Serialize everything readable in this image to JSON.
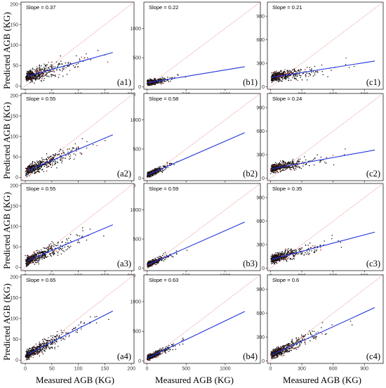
{
  "figure": {
    "ylabel": "Predicted AGB (KG)",
    "xlabel": "Measured AGB (KG)"
  },
  "chart_data": [
    {
      "type": "scatter",
      "panel_label": "(a1)",
      "annotation": "Slope = 0.37",
      "slope": 0.37,
      "intercept": 22,
      "xlim": [
        -8,
        205
      ],
      "ylim": [
        -8,
        205
      ],
      "xticks": [
        0,
        50,
        100,
        150,
        200
      ],
      "yticks": [
        0,
        50,
        100,
        150,
        200
      ],
      "n_points": 500,
      "x_scale": 25,
      "x_max": 165,
      "noise": 14,
      "fit_line": {
        "color": "#2233dd",
        "x": [
          5,
          165
        ],
        "y": [
          24,
          82
        ]
      },
      "identity_line": {
        "color": "#e88080",
        "style": "dotted"
      }
    },
    {
      "type": "scatter",
      "panel_label": "(b1)",
      "annotation": "Slope = 0.22",
      "slope": 0.22,
      "intercept": 70,
      "xlim": [
        -40,
        1450
      ],
      "ylim": [
        -40,
        1450
      ],
      "xticks": [
        0,
        500,
        1000
      ],
      "yticks": [
        0,
        500,
        1000
      ],
      "n_points": 450,
      "x_scale": 80,
      "x_max": 1250,
      "noise": 45,
      "fit_line": {
        "color": "#2233dd",
        "x": [
          10,
          1250
        ],
        "y": [
          72,
          345
        ]
      },
      "identity_line": {
        "color": "#e88080",
        "style": "dotted"
      }
    },
    {
      "type": "scatter",
      "panel_label": "(c1)",
      "annotation": "Slope = 0.21",
      "slope": 0.21,
      "intercept": 120,
      "xlim": [
        -30,
        1080
      ],
      "ylim": [
        -30,
        1080
      ],
      "xticks": [
        0,
        300,
        600,
        900
      ],
      "yticks": [
        0,
        300,
        600,
        900
      ],
      "n_points": 500,
      "x_scale": 120,
      "x_max": 1000,
      "noise": 55,
      "fit_line": {
        "color": "#2233dd",
        "x": [
          10,
          1000
        ],
        "y": [
          122,
          330
        ]
      },
      "identity_line": {
        "color": "#e88080",
        "style": "dotted"
      }
    },
    {
      "type": "scatter",
      "panel_label": "(a2)",
      "annotation": "Slope = 0.55",
      "slope": 0.55,
      "intercept": 14,
      "xlim": [
        -8,
        205
      ],
      "ylim": [
        -8,
        205
      ],
      "xticks": [
        0,
        50,
        100,
        150,
        200
      ],
      "yticks": [
        0,
        50,
        100,
        150,
        200
      ],
      "n_points": 500,
      "x_scale": 25,
      "x_max": 165,
      "noise": 12,
      "fit_line": {
        "color": "#2233dd",
        "x": [
          5,
          165
        ],
        "y": [
          17,
          104
        ]
      },
      "identity_line": {
        "color": "#e88080",
        "style": "dotted"
      }
    },
    {
      "type": "scatter",
      "panel_label": "(b2)",
      "annotation": "Slope = 0.58",
      "slope": 0.58,
      "intercept": 55,
      "xlim": [
        -40,
        1450
      ],
      "ylim": [
        -40,
        1450
      ],
      "xticks": [
        0,
        500,
        1000
      ],
      "yticks": [
        0,
        500,
        1000
      ],
      "n_points": 450,
      "x_scale": 80,
      "x_max": 1250,
      "noise": 45,
      "fit_line": {
        "color": "#2233dd",
        "x": [
          10,
          1250
        ],
        "y": [
          60,
          780
        ]
      },
      "identity_line": {
        "color": "#e88080",
        "style": "dotted"
      }
    },
    {
      "type": "scatter",
      "panel_label": "(c2)",
      "annotation": "Slope = 0.24",
      "slope": 0.24,
      "intercept": 120,
      "xlim": [
        -30,
        1080
      ],
      "ylim": [
        -30,
        1080
      ],
      "xticks": [
        0,
        300,
        600,
        900
      ],
      "yticks": [
        0,
        300,
        600,
        900
      ],
      "n_points": 500,
      "x_scale": 120,
      "x_max": 1000,
      "noise": 55,
      "fit_line": {
        "color": "#2233dd",
        "x": [
          10,
          1000
        ],
        "y": [
          122,
          360
        ]
      },
      "identity_line": {
        "color": "#e88080",
        "style": "dotted"
      }
    },
    {
      "type": "scatter",
      "panel_label": "(a3)",
      "annotation": "Slope = 0.55",
      "slope": 0.55,
      "intercept": 14,
      "xlim": [
        -8,
        205
      ],
      "ylim": [
        -8,
        205
      ],
      "xticks": [
        0,
        50,
        100,
        150,
        200
      ],
      "yticks": [
        0,
        50,
        100,
        150,
        200
      ],
      "n_points": 500,
      "x_scale": 25,
      "x_max": 165,
      "noise": 12,
      "fit_line": {
        "color": "#2233dd",
        "x": [
          5,
          165
        ],
        "y": [
          17,
          104
        ]
      },
      "identity_line": {
        "color": "#e88080",
        "style": "dotted"
      }
    },
    {
      "type": "scatter",
      "panel_label": "(b3)",
      "annotation": "Slope = 0.59",
      "slope": 0.59,
      "intercept": 55,
      "xlim": [
        -40,
        1450
      ],
      "ylim": [
        -40,
        1450
      ],
      "xticks": [
        0,
        500,
        1000
      ],
      "yticks": [
        0,
        500,
        1000
      ],
      "n_points": 450,
      "x_scale": 80,
      "x_max": 1250,
      "noise": 45,
      "fit_line": {
        "color": "#2233dd",
        "x": [
          10,
          1250
        ],
        "y": [
          60,
          790
        ]
      },
      "identity_line": {
        "color": "#e88080",
        "style": "dotted"
      }
    },
    {
      "type": "scatter",
      "panel_label": "(c3)",
      "annotation": "Slope = 0.35",
      "slope": 0.35,
      "intercept": 110,
      "xlim": [
        -30,
        1080
      ],
      "ylim": [
        -30,
        1080
      ],
      "xticks": [
        0,
        300,
        600,
        900
      ],
      "yticks": [
        0,
        300,
        600,
        900
      ],
      "n_points": 500,
      "x_scale": 120,
      "x_max": 1000,
      "noise": 55,
      "fit_line": {
        "color": "#2233dd",
        "x": [
          10,
          1000
        ],
        "y": [
          114,
          460
        ]
      },
      "identity_line": {
        "color": "#e88080",
        "style": "dotted"
      }
    },
    {
      "type": "scatter",
      "panel_label": "(a4)",
      "annotation": "Slope = 0.65",
      "slope": 0.65,
      "intercept": 11,
      "xlim": [
        -8,
        205
      ],
      "ylim": [
        -8,
        205
      ],
      "xticks": [
        0,
        50,
        100,
        150,
        200
      ],
      "yticks": [
        0,
        50,
        100,
        150,
        200
      ],
      "n_points": 500,
      "x_scale": 25,
      "x_max": 165,
      "noise": 11,
      "fit_line": {
        "color": "#2233dd",
        "x": [
          5,
          165
        ],
        "y": [
          14,
          118
        ]
      },
      "identity_line": {
        "color": "#e88080",
        "style": "dotted"
      }
    },
    {
      "type": "scatter",
      "panel_label": "(b4)",
      "annotation": "Slope = 0.63",
      "slope": 0.63,
      "intercept": 45,
      "xlim": [
        -40,
        1450
      ],
      "ylim": [
        -40,
        1450
      ],
      "xticks": [
        0,
        500,
        1000
      ],
      "yticks": [
        0,
        500,
        1000
      ],
      "n_points": 450,
      "x_scale": 80,
      "x_max": 1250,
      "noise": 45,
      "fit_line": {
        "color": "#2233dd",
        "x": [
          10,
          1250
        ],
        "y": [
          51,
          833
        ]
      },
      "identity_line": {
        "color": "#e88080",
        "style": "dotted"
      }
    },
    {
      "type": "scatter",
      "panel_label": "(c4)",
      "annotation": "Slope = 0.6",
      "slope": 0.6,
      "intercept": 70,
      "xlim": [
        -30,
        1080
      ],
      "ylim": [
        -30,
        1080
      ],
      "xticks": [
        0,
        300,
        600,
        900
      ],
      "yticks": [
        0,
        300,
        600,
        900
      ],
      "n_points": 500,
      "x_scale": 120,
      "x_max": 1000,
      "noise": 55,
      "fit_line": {
        "color": "#2233dd",
        "x": [
          10,
          1000
        ],
        "y": [
          76,
          670
        ]
      },
      "identity_line": {
        "color": "#e88080",
        "style": "dotted"
      }
    }
  ]
}
